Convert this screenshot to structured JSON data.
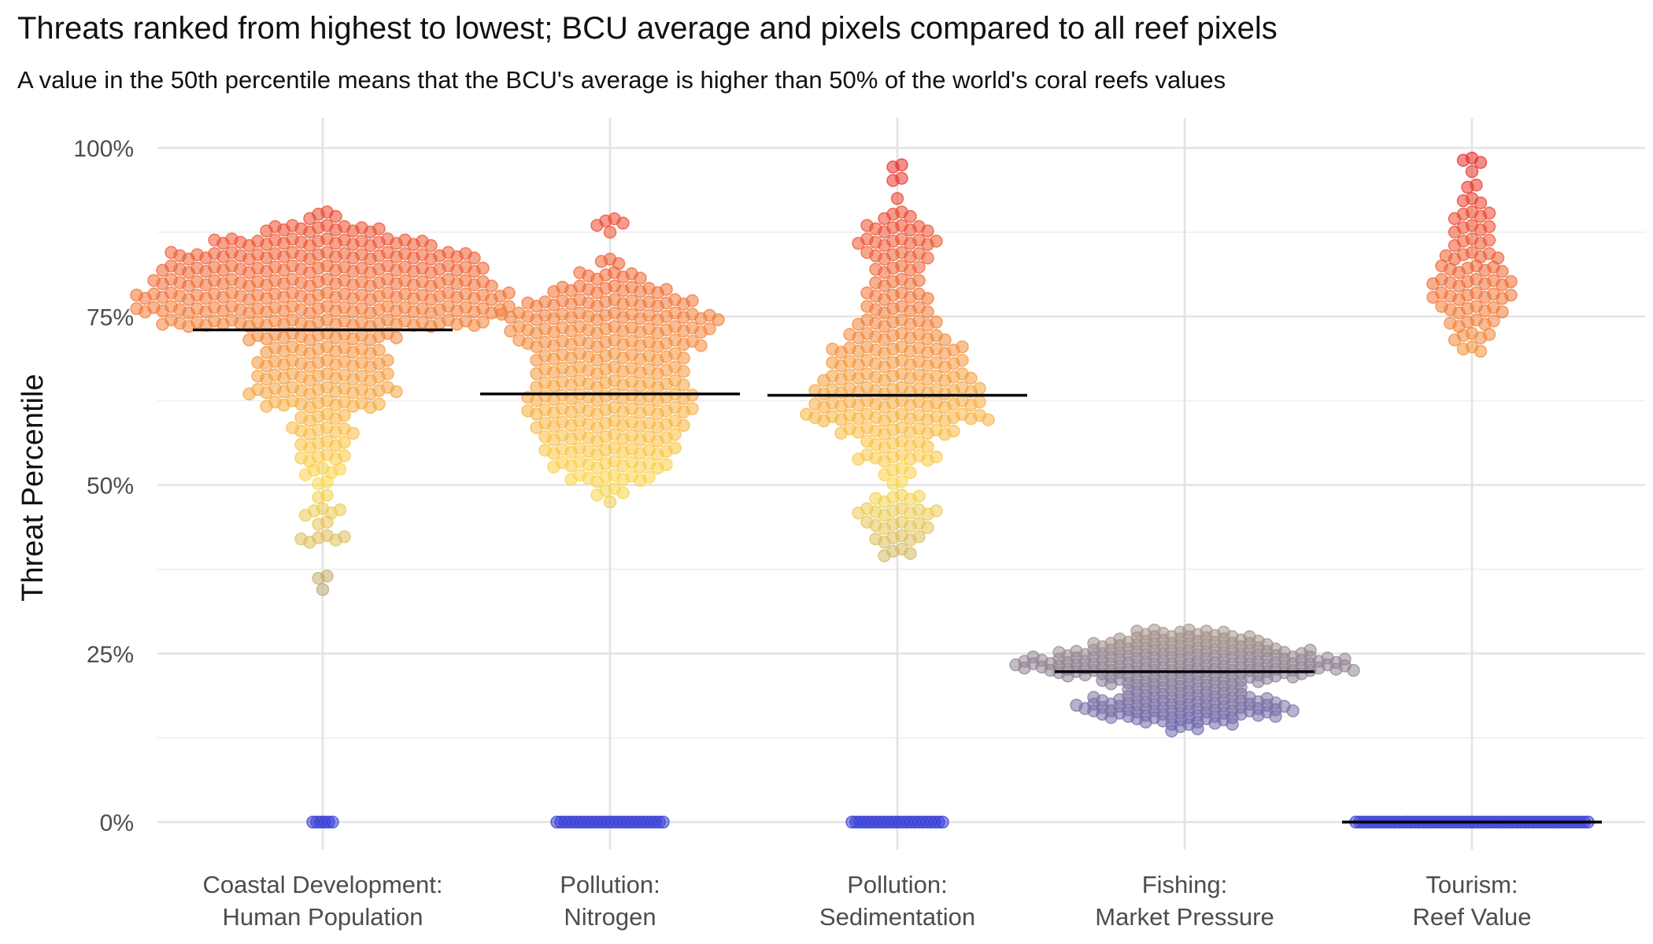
{
  "chart_data": {
    "type": "scatter",
    "subtype": "beeswarm",
    "title": "Threats ranked from highest to lowest; BCU average and pixels compared to all reef pixels",
    "subtitle": "A value in the 50th percentile means that the BCU's average is higher than 50% of the world's coral reefs values",
    "xlabel": "",
    "ylabel": "Threat Percentile",
    "ylim": [
      0,
      100
    ],
    "yticks": [
      0,
      25,
      50,
      75,
      100
    ],
    "ytick_labels": [
      "0%",
      "25%",
      "50%",
      "75%",
      "100%"
    ],
    "grid": true,
    "color_scale": {
      "low": "#3a3fd6",
      "mid": "#fcd84a",
      "high": "#e8262a"
    },
    "mean_line_color": "#000000",
    "categories": [
      {
        "label_line1": "Coastal Development:",
        "label_line2": "Human Population",
        "mean": 73,
        "zero_count": 6,
        "distribution": [
          [
            90,
            4
          ],
          [
            88,
            14
          ],
          [
            86,
            26
          ],
          [
            84,
            36
          ],
          [
            82,
            38
          ],
          [
            80,
            40
          ],
          [
            78,
            44
          ],
          [
            76,
            44
          ],
          [
            74,
            38
          ],
          [
            72,
            18
          ],
          [
            70,
            14
          ],
          [
            68,
            16
          ],
          [
            66,
            16
          ],
          [
            64,
            18
          ],
          [
            62,
            14
          ],
          [
            60,
            6
          ],
          [
            58,
            8
          ],
          [
            56,
            6
          ],
          [
            54,
            6
          ],
          [
            52,
            5
          ],
          [
            50,
            2
          ],
          [
            48,
            2
          ],
          [
            46,
            5
          ],
          [
            44,
            2
          ],
          [
            42,
            6
          ],
          [
            36,
            2
          ],
          [
            34,
            1
          ]
        ]
      },
      {
        "label_line1": "Pollution:",
        "label_line2": "Nitrogen",
        "mean": 63.5,
        "zero_count": 28,
        "distribution": [
          [
            89,
            4
          ],
          [
            87,
            1
          ],
          [
            83,
            3
          ],
          [
            81,
            8
          ],
          [
            79,
            14
          ],
          [
            77,
            20
          ],
          [
            75,
            26
          ],
          [
            73,
            24
          ],
          [
            71,
            22
          ],
          [
            69,
            18
          ],
          [
            67,
            18
          ],
          [
            65,
            18
          ],
          [
            63,
            20
          ],
          [
            61,
            20
          ],
          [
            59,
            18
          ],
          [
            57,
            16
          ],
          [
            55,
            16
          ],
          [
            53,
            14
          ],
          [
            51,
            10
          ],
          [
            49,
            4
          ],
          [
            47,
            1
          ]
        ]
      },
      {
        "label_line1": "Pollution:",
        "label_line2": "Sedimentation",
        "mean": 63.3,
        "zero_count": 24,
        "distribution": [
          [
            97,
            2
          ],
          [
            95,
            2
          ],
          [
            92,
            1
          ],
          [
            90,
            4
          ],
          [
            88,
            8
          ],
          [
            86,
            10
          ],
          [
            84,
            8
          ],
          [
            82,
            6
          ],
          [
            80,
            6
          ],
          [
            78,
            8
          ],
          [
            76,
            8
          ],
          [
            74,
            10
          ],
          [
            72,
            12
          ],
          [
            70,
            16
          ],
          [
            68,
            16
          ],
          [
            66,
            18
          ],
          [
            64,
            20
          ],
          [
            62,
            20
          ],
          [
            60,
            22
          ],
          [
            58,
            14
          ],
          [
            56,
            8
          ],
          [
            54,
            10
          ],
          [
            52,
            4
          ],
          [
            50,
            2
          ],
          [
            48,
            6
          ],
          [
            46,
            10
          ],
          [
            44,
            8
          ],
          [
            42,
            6
          ],
          [
            40,
            4
          ]
        ]
      },
      {
        "label_line1": "Fishing:",
        "label_line2": "Market Pressure",
        "mean": 22.3,
        "zero_count": 0,
        "distribution": [
          [
            28,
            12
          ],
          [
            27,
            18
          ],
          [
            26,
            22
          ],
          [
            25,
            30
          ],
          [
            24,
            38
          ],
          [
            23,
            40
          ],
          [
            22,
            30
          ],
          [
            21,
            20
          ],
          [
            20,
            14
          ],
          [
            19,
            14
          ],
          [
            18,
            22
          ],
          [
            17,
            26
          ],
          [
            16,
            22
          ],
          [
            15,
            12
          ],
          [
            14,
            4
          ]
        ]
      },
      {
        "label_line1": "Tourism:",
        "label_line2": "Reef Value",
        "mean": 0,
        "zero_count": 60,
        "distribution": [
          [
            98,
            3
          ],
          [
            96,
            1
          ],
          [
            94,
            2
          ],
          [
            92,
            3
          ],
          [
            90,
            5
          ],
          [
            88,
            5
          ],
          [
            86,
            5
          ],
          [
            84,
            7
          ],
          [
            82,
            8
          ],
          [
            80,
            10
          ],
          [
            78,
            10
          ],
          [
            76,
            8
          ],
          [
            74,
            6
          ],
          [
            72,
            5
          ],
          [
            70,
            3
          ]
        ]
      }
    ]
  }
}
